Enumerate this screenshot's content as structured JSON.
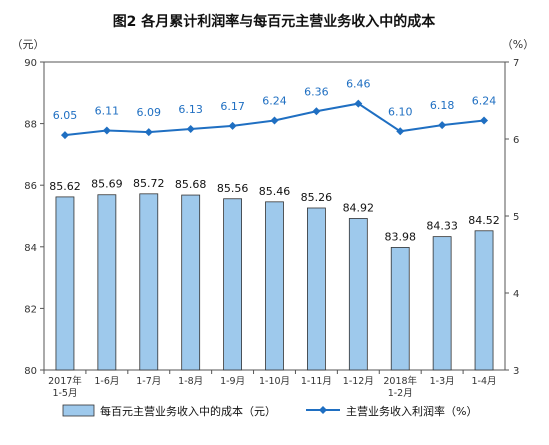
{
  "chart_data": {
    "type": "bar",
    "title": "图2  各月累计利润率与每百元主营业务收入中的成本",
    "left_unit": "（元）",
    "right_unit": "（%）",
    "categories": [
      [
        "2017年",
        "1-5月"
      ],
      [
        "1-6月"
      ],
      [
        "1-7月"
      ],
      [
        "1-8月"
      ],
      [
        "1-9月"
      ],
      [
        "1-10月"
      ],
      [
        "1-11月"
      ],
      [
        "1-12月"
      ],
      [
        "2018年",
        "1-2月"
      ],
      [
        "1-3月"
      ],
      [
        "1-4月"
      ]
    ],
    "left_axis": {
      "min": 80,
      "max": 90,
      "ticks": [
        "80",
        "82",
        "84",
        "86",
        "88",
        "90"
      ]
    },
    "right_axis": {
      "min": 3,
      "max": 7,
      "ticks": [
        "3",
        "4",
        "5",
        "6",
        "7"
      ]
    },
    "series": [
      {
        "name": "每百元主营业务收入中的成本（元）",
        "kind": "bar",
        "axis": "left",
        "color": "#9ec9ec",
        "values": [
          85.62,
          85.69,
          85.72,
          85.68,
          85.56,
          85.46,
          85.26,
          84.92,
          83.98,
          84.33,
          84.52
        ],
        "labels": [
          "85.62",
          "85.69",
          "85.72",
          "85.68",
          "85.56",
          "85.46",
          "85.26",
          "84.92",
          "83.98",
          "84.33",
          "84.52"
        ]
      },
      {
        "name": "主营业务收入利润率（%）",
        "kind": "line",
        "axis": "right",
        "color": "#1f6fc2",
        "values": [
          6.05,
          6.11,
          6.09,
          6.13,
          6.17,
          6.24,
          6.36,
          6.46,
          6.1,
          6.18,
          6.24
        ],
        "labels": [
          "6.05",
          "6.11",
          "6.09",
          "6.13",
          "6.17",
          "6.24",
          "6.36",
          "6.46",
          "6.10",
          "6.18",
          "6.24"
        ]
      }
    ],
    "grid": false,
    "legend_position": "bottom"
  }
}
